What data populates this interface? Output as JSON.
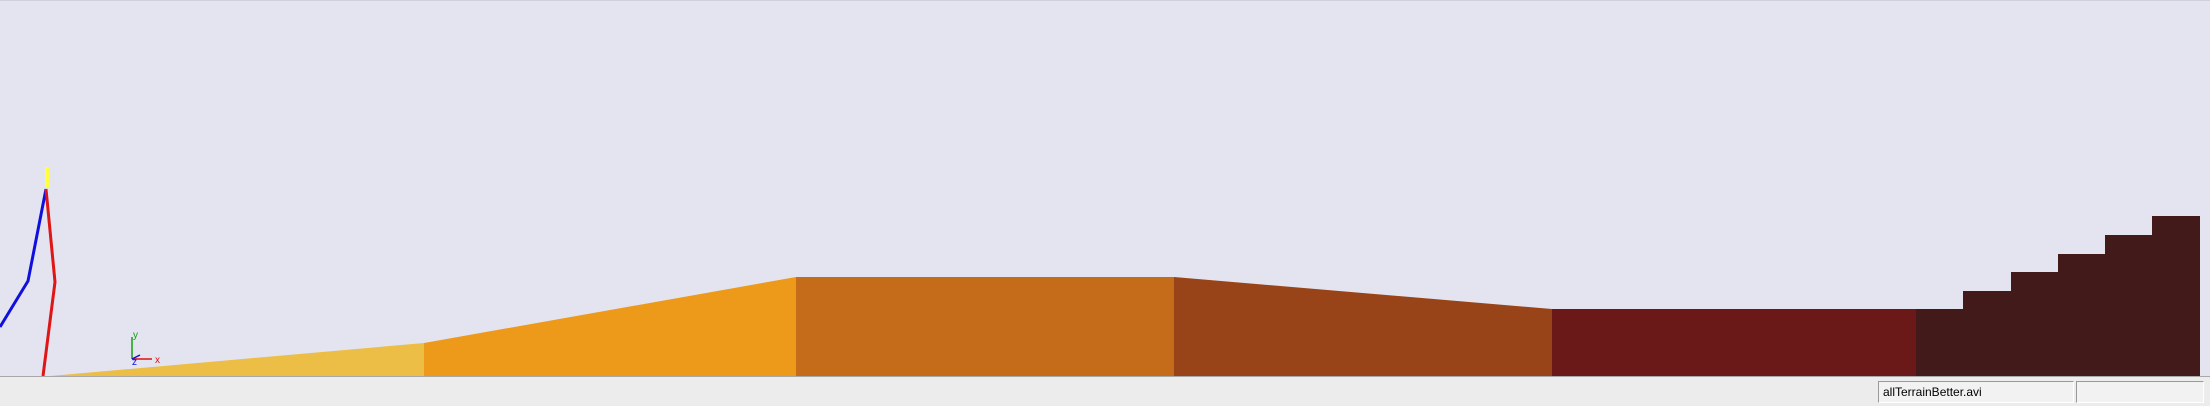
{
  "viewport": {
    "background_color": "#e3e4f0",
    "terrain_colors": [
      "#ecbe45",
      "#ed9a1b",
      "#c46c1a",
      "#984418",
      "#6b1819",
      "#421a1a"
    ],
    "skeleton_colors": {
      "left_leg": "#1010dd",
      "right_leg": "#e01515",
      "head": "#ffff40"
    },
    "axis_triad": {
      "x_label": "x",
      "y_label": "y",
      "z_label": "z",
      "x_color": "#dd1010",
      "y_color": "#10a010",
      "z_color": "#1010dd"
    }
  },
  "statusbar": {
    "message": "",
    "filename": "allTerrainBetter.avi",
    "extra": ""
  }
}
